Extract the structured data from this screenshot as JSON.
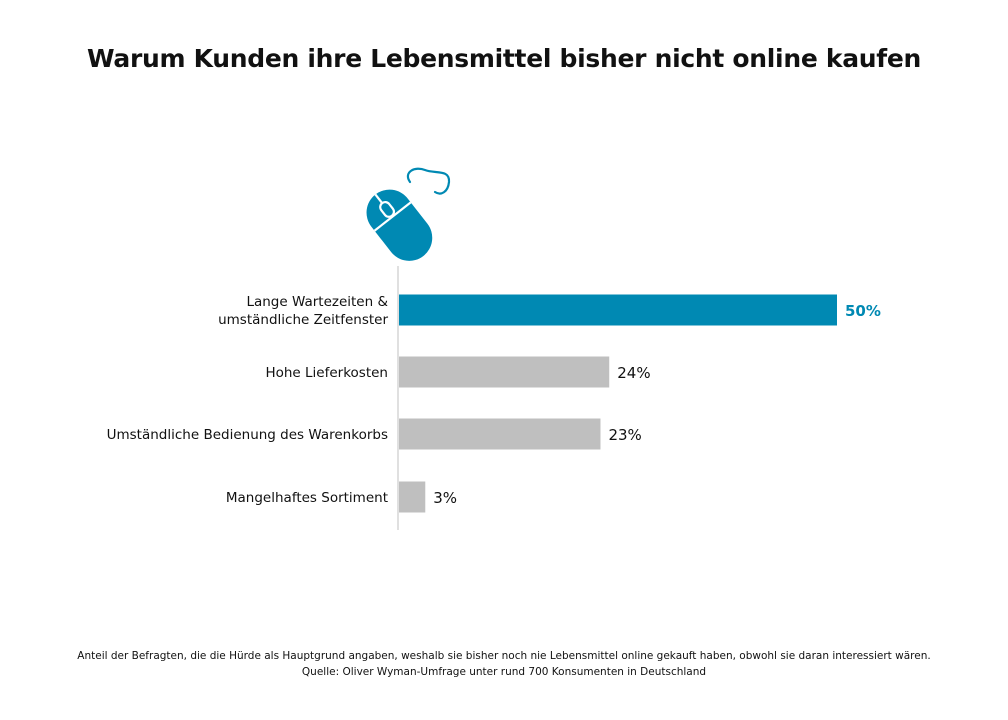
{
  "chart_data": {
    "type": "bar",
    "orientation": "horizontal",
    "title": "Warum Kunden ihre Lebensmittel bisher nicht online kaufen",
    "categories": [
      [
        "Lange Wartezeiten &",
        "umständliche Zeitfenster"
      ],
      [
        "Hohe Lieferkosten"
      ],
      [
        "Umständliche Bedienung des Warenkorbs"
      ],
      [
        "Mangelhaftes Sortiment"
      ]
    ],
    "values": [
      50,
      24,
      23,
      3
    ],
    "value_labels": [
      "50%",
      "24%",
      "23%",
      "3%"
    ],
    "highlight_index": 0,
    "xlim": [
      0,
      50
    ],
    "grid": false,
    "colors": {
      "highlight": "#0089B3",
      "default": "#BFBFBF",
      "axis": "#D0D0D0",
      "highlight_label": "#0089B3",
      "default_label": "#111111"
    }
  },
  "icon": "computer-mouse-icon",
  "footnote": {
    "line1": "Anteil der Befragten, die die Hürde als Hauptgrund angaben, weshalb sie bisher noch nie Lebensmittel online gekauft haben, obwohl sie daran interessiert wären.",
    "line2": "Quelle: Oliver Wyman-Umfrage unter rund 700 Konsumenten in Deutschland"
  }
}
